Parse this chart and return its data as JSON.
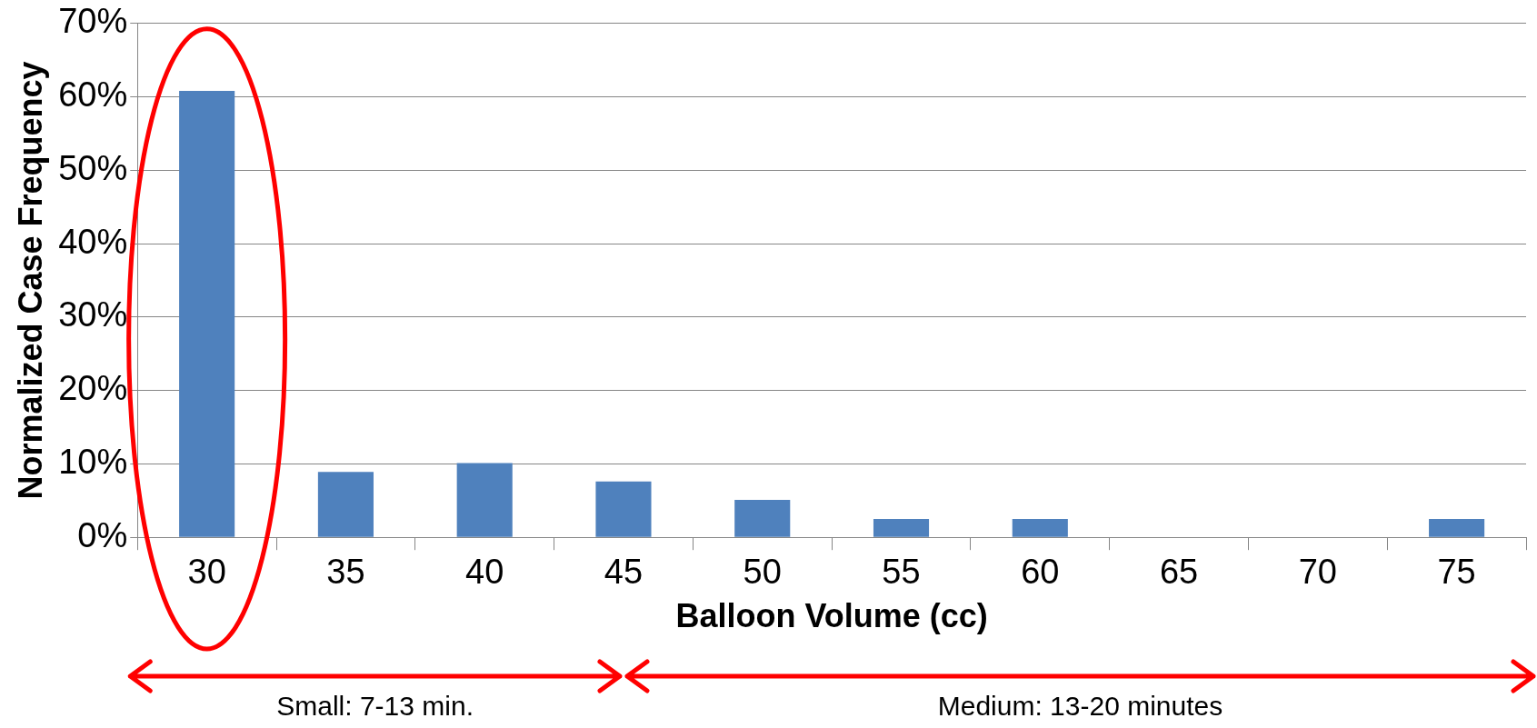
{
  "chart_data": {
    "type": "bar",
    "xlabel": "Balloon Volume (cc)",
    "ylabel": "Normalized Case Frequency",
    "categories": [
      "30",
      "35",
      "40",
      "45",
      "50",
      "55",
      "60",
      "65",
      "70",
      "75"
    ],
    "values": [
      60.8,
      8.9,
      10.1,
      7.6,
      5.1,
      2.5,
      2.5,
      0,
      0,
      2.5
    ],
    "color": "#4f81bd",
    "ylim": [
      0,
      70
    ],
    "yticks": [
      {
        "value": 0,
        "label": "0%"
      },
      {
        "value": 10,
        "label": "10%"
      },
      {
        "value": 20,
        "label": "20%"
      },
      {
        "value": 30,
        "label": "30%"
      },
      {
        "value": 40,
        "label": "40%"
      },
      {
        "value": 50,
        "label": "50%"
      },
      {
        "value": 60,
        "label": "60%"
      },
      {
        "value": 70,
        "label": "70%"
      }
    ],
    "grid": "y",
    "legend": false,
    "annotations": [
      "Small: 7-13 min.",
      "Medium: 13-20 minutes"
    ]
  }
}
